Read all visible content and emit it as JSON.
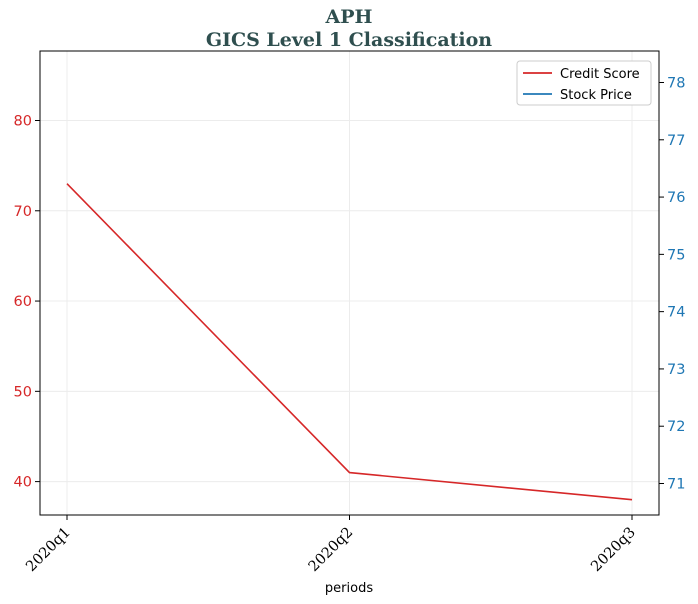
{
  "chart_data": {
    "type": "line",
    "title": "APH",
    "subtitle": "GICS Level 1 Classification",
    "xlabel": "periods",
    "categories": [
      "2020q1",
      "2020q2",
      "2020q3"
    ],
    "series": [
      {
        "name": "Credit Score",
        "axis": "left",
        "color": "#d62728",
        "values": [
          73,
          41,
          38
        ]
      },
      {
        "name": "Stock Price",
        "axis": "right",
        "color": "#1f77b4",
        "values": [
          null,
          null,
          null
        ]
      }
    ],
    "y_left": {
      "ylim": [
        36.3,
        87.7
      ],
      "ticks": [
        40,
        50,
        60,
        70,
        80
      ],
      "color": "#d62728"
    },
    "y_right": {
      "ylim": [
        70.45,
        78.55
      ],
      "ticks": [
        71,
        72,
        73,
        74,
        75,
        76,
        77,
        78
      ],
      "color": "#1f77b4"
    },
    "grid": true,
    "legend_placement": "upper right",
    "title_color": "#2f4f4f"
  }
}
